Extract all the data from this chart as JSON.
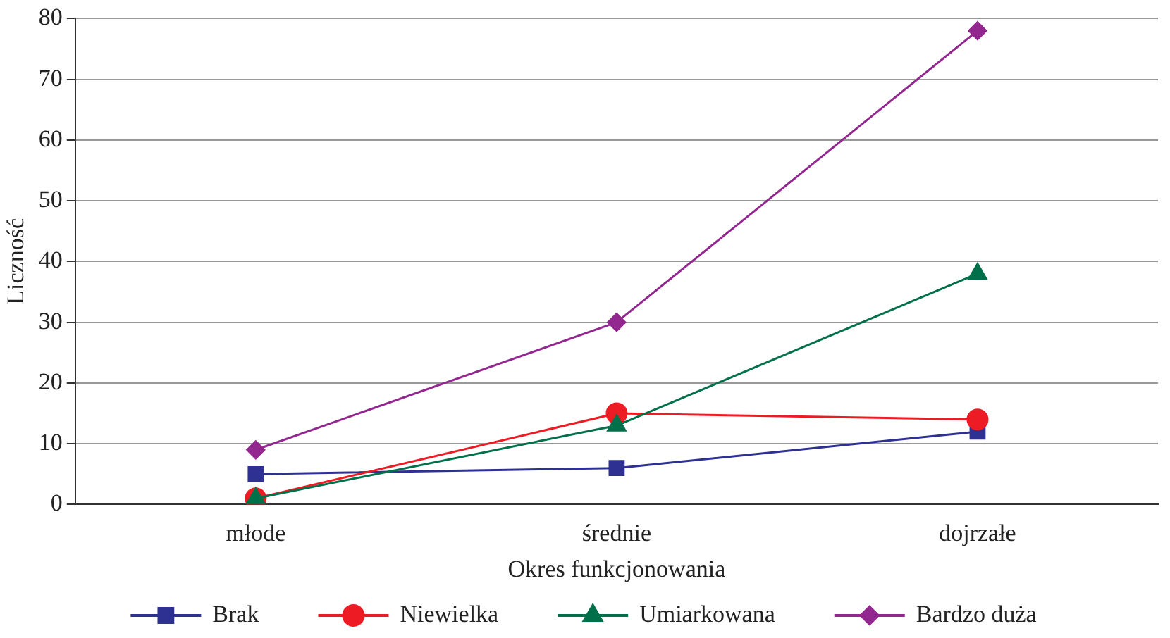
{
  "chart_data": {
    "type": "line",
    "xlabel": "Okres funkcjonowania",
    "ylabel": "Liczność",
    "categories": [
      "młode",
      "średnie",
      "dojrzałe"
    ],
    "series": [
      {
        "name": "Brak",
        "color": "#2e3192",
        "values": [
          5,
          6,
          12
        ],
        "marker": "square"
      },
      {
        "name": "Niewielka",
        "color": "#ed1c24",
        "values": [
          1,
          15,
          14
        ],
        "marker": "circle"
      },
      {
        "name": "Umiarkowana",
        "color": "#00704a",
        "values": [
          1,
          13,
          38
        ],
        "marker": "triangle"
      },
      {
        "name": "Bardzo duża",
        "color": "#92278f",
        "values": [
          9,
          30,
          78
        ],
        "marker": "diamond"
      }
    ],
    "ylim": [
      0,
      80
    ],
    "yticks": [
      0,
      10,
      20,
      30,
      40,
      50,
      60,
      70,
      80
    ],
    "grid": "y",
    "legend": "bottom"
  }
}
